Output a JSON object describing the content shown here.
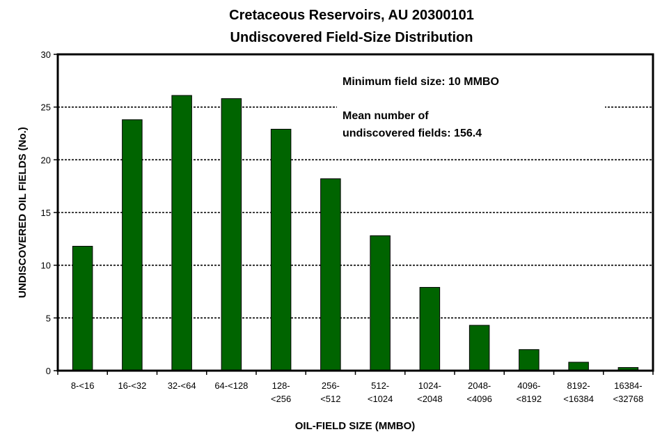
{
  "chart_data": {
    "type": "bar",
    "title": [
      "Cretaceous Reservoirs, AU 20300101",
      "Undiscovered Field-Size Distribution"
    ],
    "xlabel": "OIL-FIELD SIZE (MMBO)",
    "ylabel": "UNDISCOVERED OIL FIELDS (No.)",
    "categories": [
      [
        "8-<16"
      ],
      [
        "16-<32"
      ],
      [
        "32-<64"
      ],
      [
        "64-<128"
      ],
      [
        "128-",
        "<256"
      ],
      [
        "256-",
        "<512"
      ],
      [
        "512-",
        "<1024"
      ],
      [
        "1024-",
        "<2048"
      ],
      [
        "2048-",
        "<4096"
      ],
      [
        "4096-",
        "<8192"
      ],
      [
        "8192-",
        "<16384"
      ],
      [
        "16384-",
        "<32768"
      ]
    ],
    "values": [
      11.8,
      23.8,
      26.1,
      25.8,
      22.9,
      18.2,
      12.8,
      7.9,
      4.3,
      2.0,
      0.8,
      0.3
    ],
    "ylim": [
      0,
      30
    ],
    "yticks": [
      0,
      5,
      10,
      15,
      20,
      25,
      30
    ],
    "grid": true,
    "bar_color": "#006400",
    "annotations": [
      "Minimum field size: 10 MMBO",
      "Mean number of",
      "undiscovered fields: 156.4"
    ]
  }
}
